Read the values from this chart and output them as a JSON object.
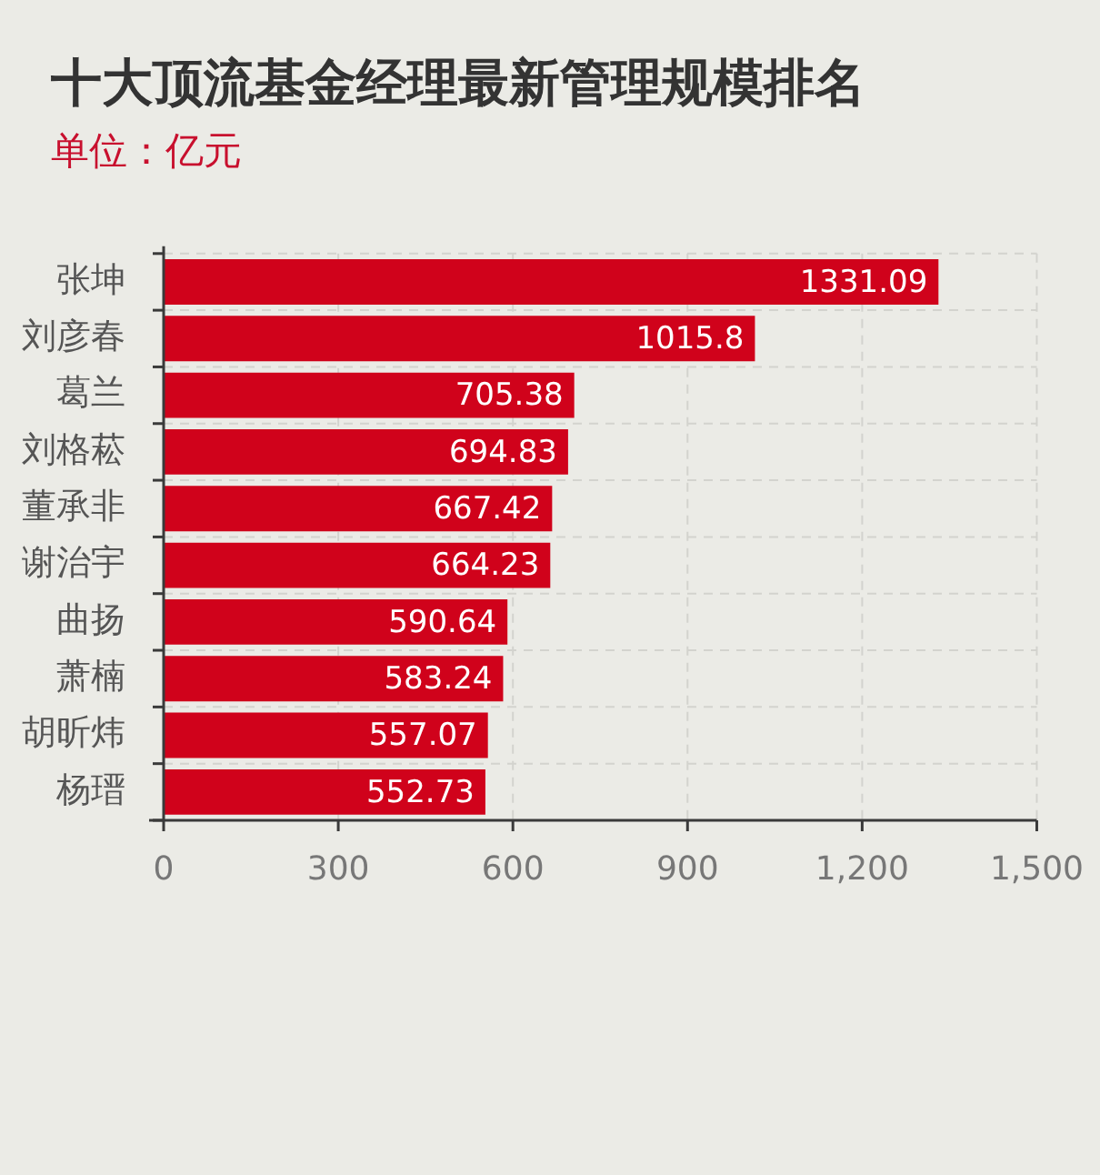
{
  "chart_data": {
    "type": "bar",
    "orientation": "horizontal",
    "title": "十大顶流基金经理最新管理规模排名",
    "subtitle": "单位：亿元",
    "categories": [
      "张坤",
      "刘彦春",
      "葛兰",
      "刘格菘",
      "董承非",
      "谢治宇",
      "曲扬",
      "萧楠",
      "胡昕炜",
      "杨瑨"
    ],
    "values": [
      1331.09,
      1015.8,
      705.38,
      694.83,
      667.42,
      664.23,
      590.64,
      583.24,
      557.07,
      552.73
    ],
    "color": "#d0021b",
    "xlim": [
      0,
      1500
    ],
    "xticks": [
      0,
      300,
      600,
      900,
      {
        "value": 1200,
        "label": "1,200"
      },
      {
        "value": 1500,
        "label": "1,500"
      }
    ],
    "grid": true,
    "data_labels": true
  }
}
